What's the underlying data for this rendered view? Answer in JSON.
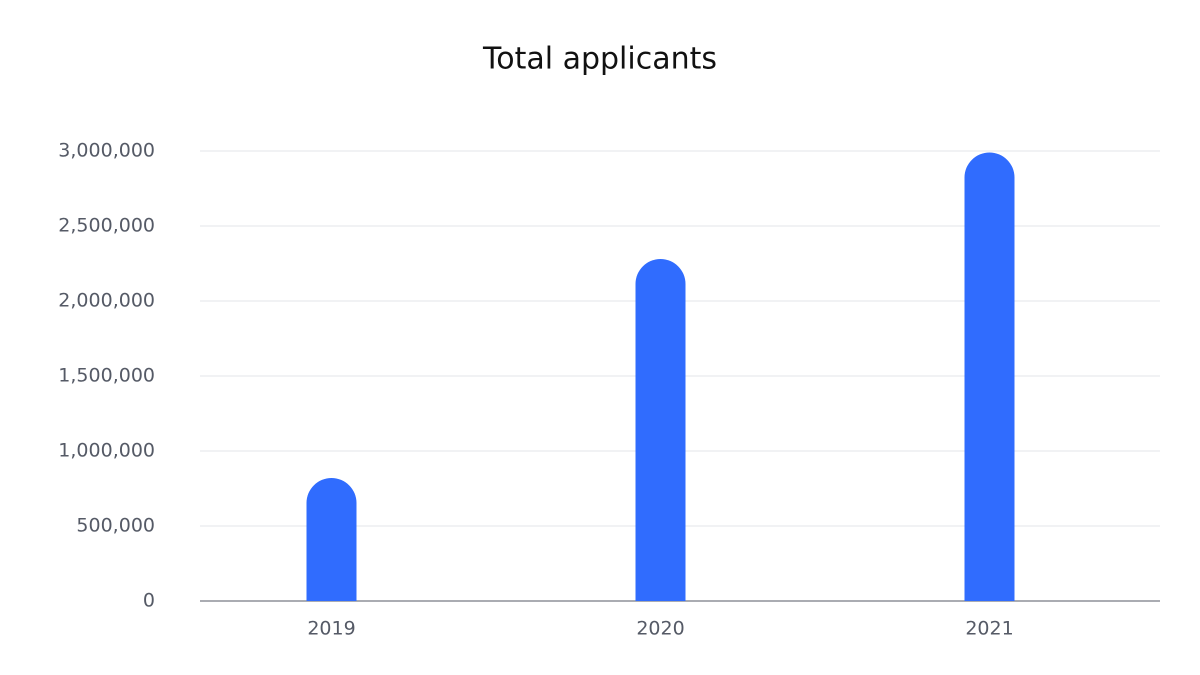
{
  "chart_data": {
    "type": "bar",
    "title": "Total applicants",
    "categories": [
      "2019",
      "2020",
      "2021"
    ],
    "values": [
      820000,
      2280000,
      2990000
    ],
    "color": "#306cfe",
    "ylim": [
      0,
      3000000
    ],
    "yticks": [
      0,
      {
        "value": 500000,
        "label": "500,000"
      },
      {
        "value": 1000000,
        "label": "1,000,000"
      },
      {
        "value": 1500000,
        "label": "1,500,000"
      },
      {
        "value": 2000000,
        "label": "2,000,000"
      },
      {
        "value": 2500000,
        "label": "2,500,000"
      },
      {
        "value": 3000000,
        "label": "3,000,000"
      }
    ],
    "grid": true
  }
}
